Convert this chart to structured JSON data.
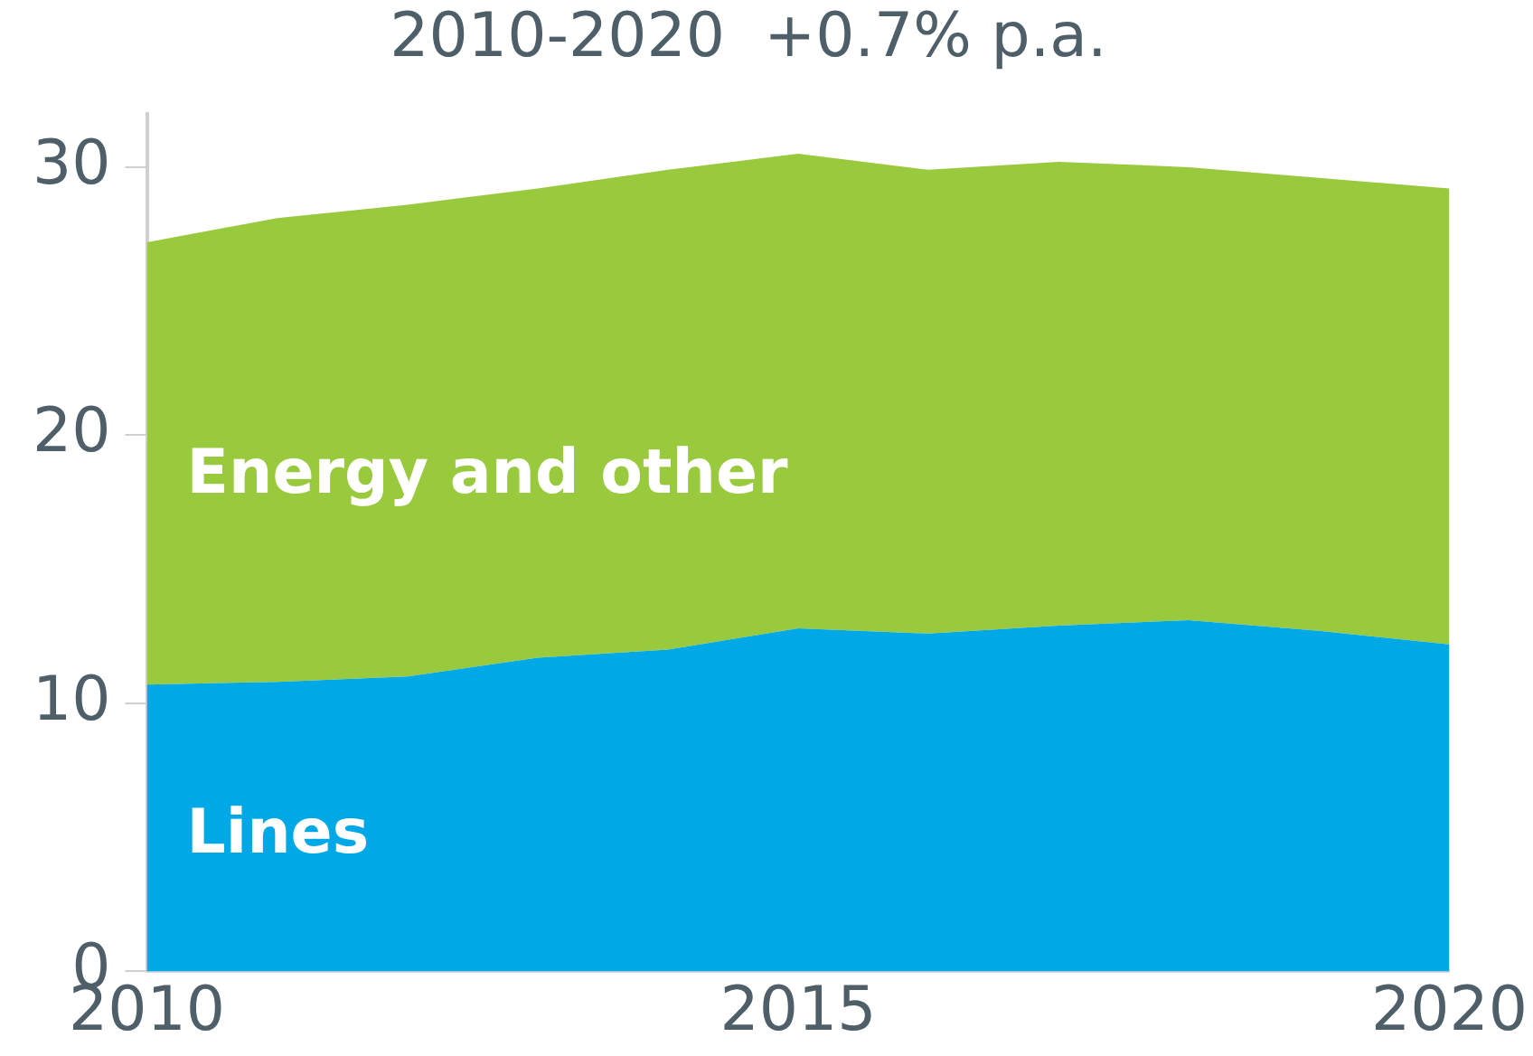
{
  "chart_data": {
    "type": "area",
    "title": "2010-2020  +0.7% p.a.",
    "stacked": true,
    "x": [
      2010,
      2011,
      2012,
      2013,
      2014,
      2015,
      2016,
      2017,
      2018,
      2019,
      2020
    ],
    "series": [
      {
        "name": "Lines",
        "color": "#00a9e6",
        "values": [
          10.7,
          10.8,
          11.0,
          11.7,
          12.0,
          12.8,
          12.6,
          12.9,
          13.1,
          12.7,
          12.2
        ]
      },
      {
        "name": "Energy and other",
        "color": "#99c93c",
        "values": [
          16.5,
          17.3,
          17.6,
          17.5,
          17.9,
          17.7,
          17.3,
          17.3,
          16.9,
          16.9,
          17.0
        ]
      }
    ],
    "xlim": [
      2010,
      2020
    ],
    "xticks": [
      2010,
      2015,
      2020
    ],
    "ylim": [
      0,
      32
    ],
    "yticks": [
      0,
      10,
      20,
      30
    ],
    "grid": false,
    "legend": false
  }
}
